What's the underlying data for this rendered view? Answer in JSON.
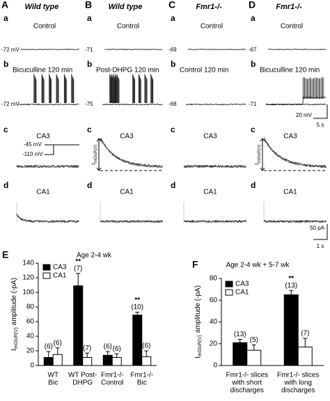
{
  "panels": [
    {
      "letter": "A",
      "title": "Wild type",
      "control_label": "Control",
      "control_mv": "-72 mV",
      "treated_label": "Bicuculline 120 min",
      "treated_mv": "-72 mV",
      "ca3_label": "CA3",
      "ca1_label": "CA1"
    },
    {
      "letter": "B",
      "title": "Wild type",
      "control_label": "Control",
      "control_mv": "-71",
      "treated_label": "Post-DHPG 120 min",
      "treated_mv": "-75",
      "ca3_label": "CA3",
      "ca1_label": "CA1"
    },
    {
      "letter": "C",
      "title": "Fmr1-/-",
      "control_label": "Control",
      "control_mv": "-69",
      "treated_label": "Control 120 min",
      "treated_mv": "-68",
      "ca3_label": "CA3",
      "ca1_label": "CA1"
    },
    {
      "letter": "D",
      "title": "Fmr1-/-",
      "control_label": "Control",
      "control_mv": "-67",
      "treated_label": "Bicuculline 120 min",
      "treated_mv": "-71",
      "ca3_label": "CA3",
      "ca1_label": "CA1"
    }
  ],
  "row_letters": [
    "a",
    "b",
    "c",
    "d"
  ],
  "inset": {
    "upper": "-45 mV",
    "lower": "-110 mV"
  },
  "current_label": {
    "main": "I",
    "sub": "mGluR(V)"
  },
  "scale_bars": {
    "voltage": "20 mV",
    "time_top": "5 s",
    "current": "50 pA",
    "time_bottom": "1 s"
  },
  "chart_data": [
    {
      "type": "bar",
      "letter": "E",
      "title": "Age 2-4 wk",
      "ylabel": {
        "main": "I",
        "sub": "mGluR(V)",
        "rest": " amplitude (-pA)"
      },
      "categories": [
        [
          "WT",
          "Bic"
        ],
        [
          "WT Post-",
          "DHPG"
        ],
        [
          "Fmr1-/-",
          "Control"
        ],
        [
          "Fmr1-/-",
          "Bic"
        ]
      ],
      "series": [
        {
          "name": "CA3",
          "color": "#000000",
          "values": [
            11,
            109,
            14,
            69
          ],
          "errors": [
            8,
            17,
            5,
            4
          ],
          "n_labels": [
            "(6)",
            "(7)",
            "(6)",
            "(10)"
          ],
          "significance": [
            null,
            "**",
            null,
            "**"
          ]
        },
        {
          "name": "CA1",
          "color": "#ffffff",
          "values": [
            15,
            11,
            11,
            12
          ],
          "errors": [
            9,
            6,
            5,
            8
          ],
          "n_labels": [
            "(6)",
            "(7)",
            "(6)",
            "(6)"
          ]
        }
      ],
      "ylim": [
        0,
        140
      ],
      "yticks": [
        0,
        20,
        40,
        60,
        80,
        100,
        120,
        140
      ],
      "legend": "upper left"
    },
    {
      "type": "bar",
      "letter": "F",
      "title": "Age 2-4 wk + 5-7 wk",
      "ylabel": {
        "main": "I",
        "sub": "mGluR(V)",
        "rest": " amplitude (-pA)"
      },
      "categories": [
        [
          "Fmr1-/- slices",
          "with short",
          "discharges"
        ],
        [
          "Fmr1-/- slices",
          "with long",
          "discharges"
        ]
      ],
      "series": [
        {
          "name": "CA3",
          "color": "#000000",
          "values": [
            21,
            65
          ],
          "errors": [
            3,
            4
          ],
          "n_labels": [
            "(13)",
            "(13)"
          ],
          "significance": [
            null,
            "**"
          ]
        },
        {
          "name": "CA1",
          "color": "#ffffff",
          "values": [
            14,
            17
          ],
          "errors": [
            5,
            8
          ],
          "n_labels": [
            "(5)",
            "(7)"
          ]
        }
      ],
      "ylim": [
        0,
        80
      ],
      "yticks": [
        0,
        20,
        40,
        60,
        80
      ],
      "legend": "upper left"
    }
  ]
}
